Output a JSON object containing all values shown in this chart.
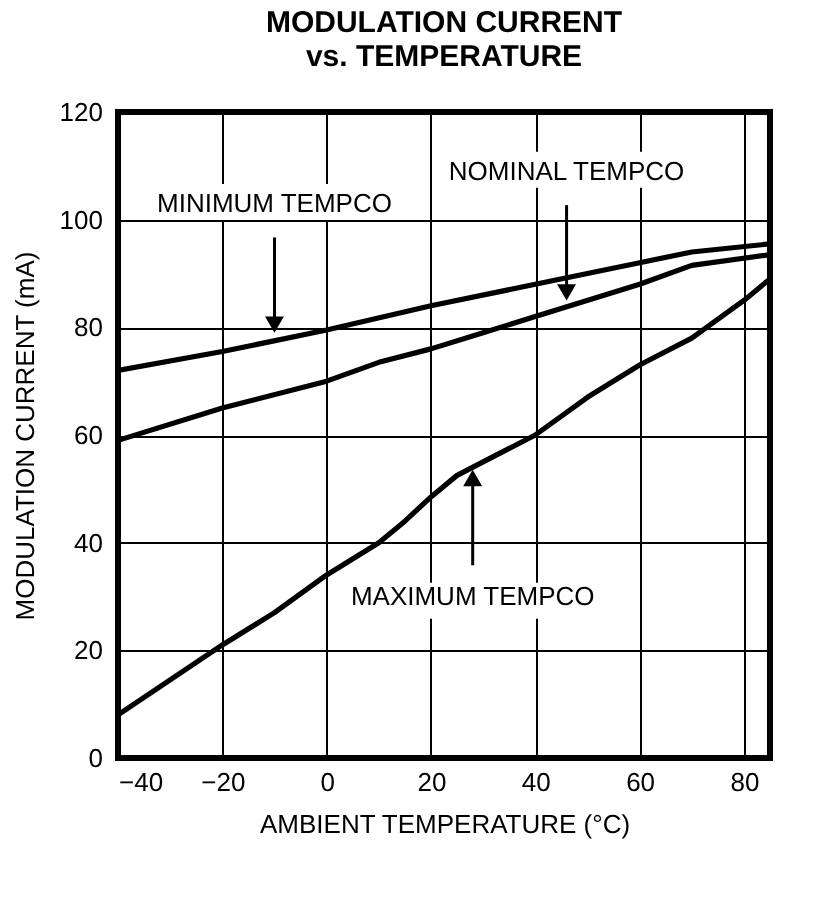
{
  "chart_data": {
    "type": "line",
    "title": "MODULATION CURRENT\nvs. TEMPERATURE",
    "xlabel": "AMBIENT TEMPERATURE (°C)",
    "ylabel": "MODULATION CURRENT (mA)",
    "xlim": [
      -40,
      85
    ],
    "xticks": [
      -40,
      -20,
      0,
      20,
      40,
      60,
      80
    ],
    "ylim": [
      0,
      120
    ],
    "yticks": [
      0,
      20,
      40,
      60,
      80,
      100,
      120
    ],
    "grid": true,
    "legend": false,
    "series": [
      {
        "color": "#000000",
        "x": [
          -40,
          -20,
          0,
          20,
          40,
          60,
          70,
          85
        ],
        "values": [
          72,
          75.5,
          79.5,
          84,
          88,
          92,
          94,
          95.5
        ]
      },
      {
        "color": "#000000",
        "x": [
          -40,
          -20,
          0,
          10,
          20,
          30,
          40,
          60,
          70,
          85
        ],
        "values": [
          59,
          65,
          70,
          73.5,
          76,
          79,
          82,
          88,
          91.5,
          93.5
        ]
      },
      {
        "color": "#000000",
        "x": [
          -40,
          -30,
          -20,
          -10,
          0,
          10,
          15,
          20,
          25,
          30,
          40,
          50,
          60,
          70,
          80,
          85
        ],
        "values": [
          8,
          14.5,
          21,
          27,
          34,
          40,
          44,
          48.5,
          52.5,
          55,
          60,
          67,
          73,
          78,
          85,
          89
        ]
      }
    ],
    "annotations": [
      {
        "text": "MINIMUM TEMPCO",
        "x": -10,
        "y": 77.5
      },
      {
        "text": "NOMINAL TEMPCO",
        "x": 46,
        "y": 83.5
      },
      {
        "text": "MAXIMUM TEMPCO",
        "x": 28,
        "y": 55
      }
    ]
  }
}
